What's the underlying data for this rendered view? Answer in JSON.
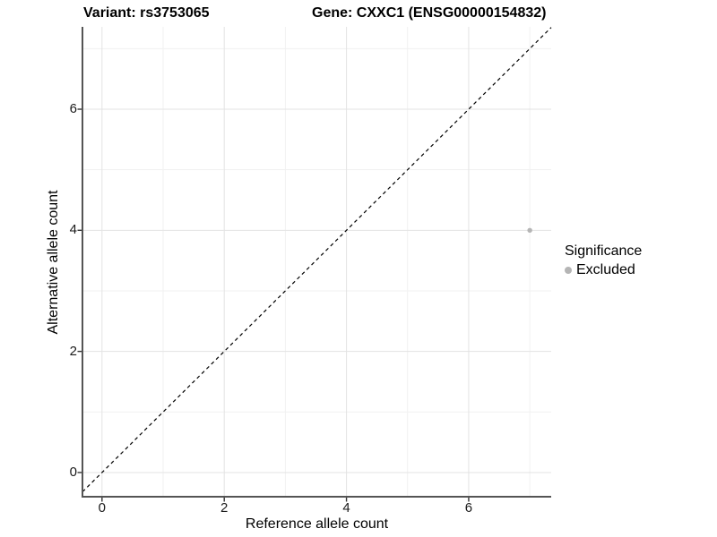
{
  "figure": {
    "title_left": "Variant: rs3753065",
    "title_right": "Gene: CXXC1 (ENSG00000154832)"
  },
  "legend": {
    "title": "Significance",
    "items": [
      {
        "label": "Excluded",
        "color": "#b5b5b5"
      }
    ]
  },
  "chart_data": {
    "type": "scatter",
    "title": "Variant: rs3753065    Gene: CXXC1 (ENSG00000154832)",
    "xlabel": "Reference allele count",
    "ylabel": "Alternative allele count",
    "xlim": [
      -0.32,
      7.35
    ],
    "ylim": [
      -0.4,
      7.36
    ],
    "x_major_ticks": [
      0,
      2,
      4,
      6
    ],
    "y_major_ticks": [
      0,
      2,
      4,
      6
    ],
    "x_minor_grid": [
      1,
      3,
      5,
      7
    ],
    "y_minor_grid": [
      1,
      3,
      5,
      7
    ],
    "grid": "major and minor gridlines on white background",
    "legend_position": "right",
    "reference_line": {
      "kind": "identity y=x",
      "style": "dashed",
      "color": "#000000"
    },
    "series": [
      {
        "name": "Excluded",
        "color": "#b5b5b5",
        "points": [
          [
            7,
            4
          ]
        ],
        "point_radius": 2.7
      }
    ]
  },
  "colors": {
    "grid_major": "#e3e3e3",
    "grid_minor": "#f1f1f1",
    "axis_line": "#545454",
    "tick_mark": "#333333",
    "text": "#000000"
  }
}
